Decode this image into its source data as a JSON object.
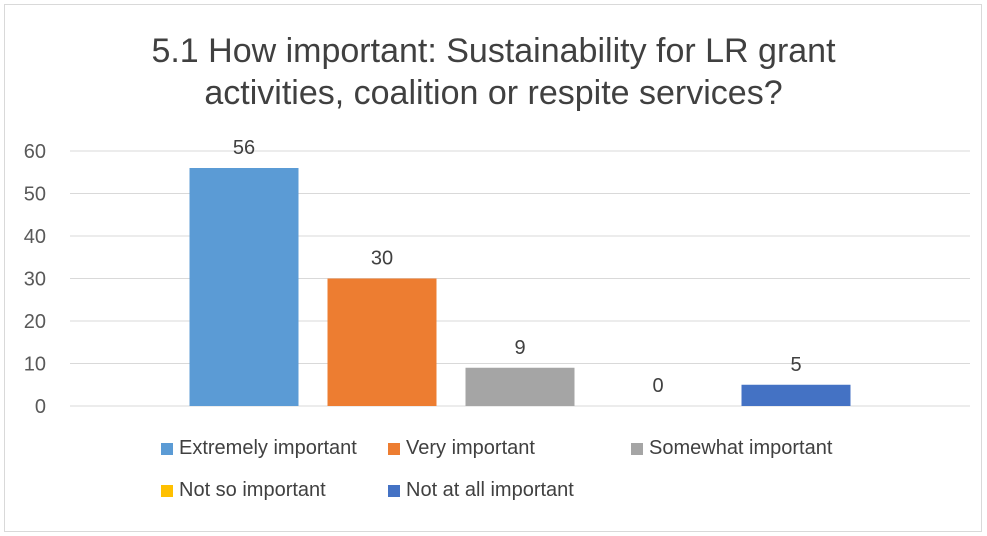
{
  "chart_data": {
    "type": "bar",
    "title_lines": [
      "5.1 How important: Sustainability for LR grant",
      "activities, coalition or respite services?"
    ],
    "categories": [
      "Extremely important",
      "Very important",
      "Somewhat important",
      "Not so important",
      "Not at all important"
    ],
    "values": [
      56,
      30,
      9,
      0,
      5
    ],
    "data_labels": [
      "56",
      "30",
      "9",
      "0",
      "5"
    ],
    "colors": [
      "#5b9bd5",
      "#ed7d31",
      "#a5a5a5",
      "#ffc000",
      "#4472c4"
    ],
    "xlabel": "",
    "ylabel": "",
    "ylim": [
      0,
      60
    ],
    "yticks": [
      "0",
      "10",
      "20",
      "30",
      "40",
      "50",
      "60"
    ],
    "grid": true,
    "legend_position": "bottom"
  }
}
